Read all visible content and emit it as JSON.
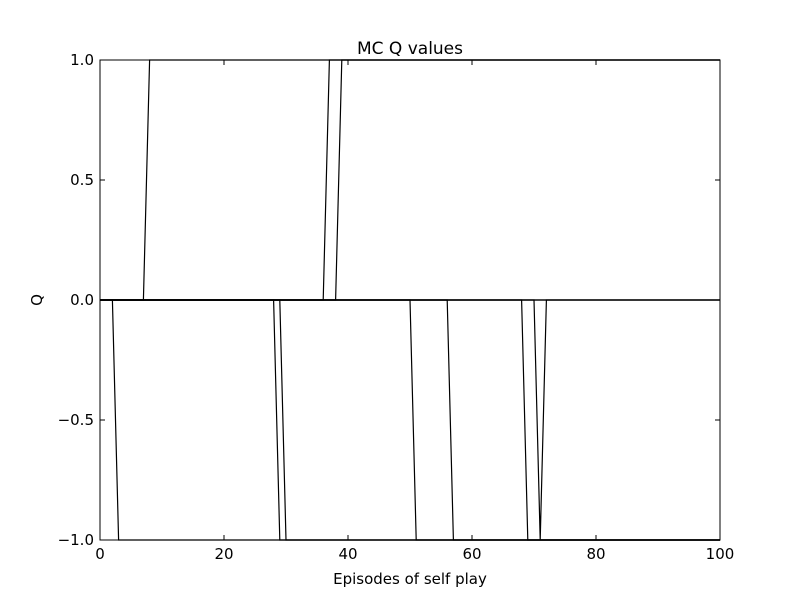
{
  "chart_data": {
    "type": "line",
    "title": "MC Q values",
    "xlabel": "Episodes of self play",
    "ylabel": "Q",
    "xlim": [
      0,
      100
    ],
    "ylim": [
      -1.0,
      1.0
    ],
    "grid": false,
    "legend": "none",
    "line_color": "#000000",
    "x_ticks": [
      {
        "value": 0,
        "label": "0"
      },
      {
        "value": 20,
        "label": "20"
      },
      {
        "value": 40,
        "label": "40"
      },
      {
        "value": 60,
        "label": "60"
      },
      {
        "value": 80,
        "label": "80"
      },
      {
        "value": 100,
        "label": "100"
      }
    ],
    "y_ticks": [
      {
        "value": 1.0,
        "label": "1.0"
      },
      {
        "value": 0.5,
        "label": "0.5"
      },
      {
        "value": 0.0,
        "label": "0.0"
      },
      {
        "value": -0.5,
        "label": "−0.5"
      },
      {
        "value": -1.0,
        "label": "−1.0"
      }
    ],
    "series": [
      {
        "values": [
          [
            0,
            0
          ],
          [
            7,
            0
          ],
          [
            8,
            1
          ],
          [
            100,
            1
          ]
        ]
      },
      {
        "values": [
          [
            0,
            0
          ],
          [
            36,
            0
          ],
          [
            37,
            1
          ],
          [
            100,
            1
          ]
        ]
      },
      {
        "values": [
          [
            0,
            0
          ],
          [
            38,
            0
          ],
          [
            39,
            1
          ],
          [
            100,
            1
          ]
        ]
      },
      {
        "values": [
          [
            0,
            0
          ],
          [
            2,
            0
          ],
          [
            3,
            -1
          ],
          [
            100,
            -1
          ]
        ]
      },
      {
        "values": [
          [
            0,
            0
          ],
          [
            28,
            0
          ],
          [
            29,
            -1
          ],
          [
            100,
            -1
          ]
        ]
      },
      {
        "values": [
          [
            0,
            0
          ],
          [
            29,
            0
          ],
          [
            30,
            -1
          ],
          [
            100,
            -1
          ]
        ]
      },
      {
        "values": [
          [
            0,
            0
          ],
          [
            50,
            0
          ],
          [
            51,
            -1
          ],
          [
            100,
            -1
          ]
        ]
      },
      {
        "values": [
          [
            0,
            0
          ],
          [
            54,
            0
          ],
          [
            55,
            0
          ],
          [
            100,
            0
          ]
        ]
      },
      {
        "values": [
          [
            0,
            0
          ],
          [
            56,
            0
          ],
          [
            57,
            -1
          ],
          [
            100,
            -1
          ]
        ]
      },
      {
        "values": [
          [
            0,
            0
          ],
          [
            68,
            0
          ],
          [
            69,
            -1
          ],
          [
            100,
            -1
          ]
        ]
      },
      {
        "values": [
          [
            0,
            0
          ],
          [
            70,
            0
          ],
          [
            71,
            -1
          ],
          [
            72,
            0
          ],
          [
            100,
            0
          ]
        ]
      },
      {
        "values": [
          [
            0,
            0
          ],
          [
            100,
            0
          ]
        ]
      }
    ]
  }
}
